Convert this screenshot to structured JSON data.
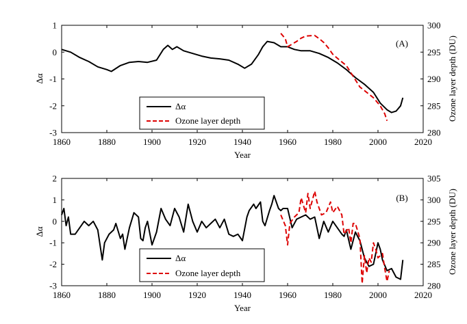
{
  "chart_data": [
    {
      "type": "line",
      "panel_label": "(A)",
      "xlabel": "Year",
      "ylabel_left": "Δα",
      "ylabel_right": "Ozone layer depth (DU)",
      "xlim": [
        1860,
        2020
      ],
      "ylim_left": [
        -3,
        1
      ],
      "ylim_right": [
        280,
        300
      ],
      "x_ticks": [
        1860,
        1880,
        1900,
        1920,
        1940,
        1960,
        1980,
        2000,
        2020
      ],
      "y_ticks_left": [
        -3,
        -2,
        -1,
        0,
        1
      ],
      "y_ticks_right": [
        280,
        285,
        290,
        295,
        300
      ],
      "legend": [
        "Δα",
        "Ozone layer depth"
      ],
      "legend_position": "bottom-center",
      "series": [
        {
          "name": "Δα",
          "axis": "left",
          "color": "#000000",
          "style": "solid",
          "points": [
            [
              1860,
              0.1
            ],
            [
              1864,
              0.0
            ],
            [
              1868,
              -0.2
            ],
            [
              1872,
              -0.35
            ],
            [
              1876,
              -0.55
            ],
            [
              1880,
              -0.65
            ],
            [
              1882,
              -0.72
            ],
            [
              1886,
              -0.5
            ],
            [
              1890,
              -0.38
            ],
            [
              1894,
              -0.35
            ],
            [
              1898,
              -0.38
            ],
            [
              1902,
              -0.3
            ],
            [
              1905,
              0.1
            ],
            [
              1907,
              0.25
            ],
            [
              1909,
              0.1
            ],
            [
              1911,
              0.2
            ],
            [
              1914,
              0.05
            ],
            [
              1918,
              -0.05
            ],
            [
              1922,
              -0.15
            ],
            [
              1926,
              -0.22
            ],
            [
              1930,
              -0.25
            ],
            [
              1934,
              -0.3
            ],
            [
              1938,
              -0.45
            ],
            [
              1941,
              -0.6
            ],
            [
              1944,
              -0.45
            ],
            [
              1947,
              -0.1
            ],
            [
              1949,
              0.2
            ],
            [
              1951,
              0.4
            ],
            [
              1954,
              0.35
            ],
            [
              1957,
              0.2
            ],
            [
              1960,
              0.2
            ],
            [
              1963,
              0.1
            ],
            [
              1966,
              0.05
            ],
            [
              1970,
              0.05
            ],
            [
              1974,
              -0.05
            ],
            [
              1978,
              -0.2
            ],
            [
              1982,
              -0.4
            ],
            [
              1986,
              -0.65
            ],
            [
              1990,
              -0.95
            ],
            [
              1994,
              -1.2
            ],
            [
              1998,
              -1.5
            ],
            [
              2001,
              -1.9
            ],
            [
              2004,
              -2.15
            ],
            [
              2006,
              -2.25
            ],
            [
              2008,
              -2.2
            ],
            [
              2010,
              -2.0
            ],
            [
              2011,
              -1.7
            ]
          ]
        },
        {
          "name": "Ozone layer depth",
          "axis": "right",
          "color": "#dd0000",
          "style": "dashed",
          "points": [
            [
              1957,
              298.5
            ],
            [
              1959,
              297.5
            ],
            [
              1960,
              296.0
            ],
            [
              1962,
              296.5
            ],
            [
              1964,
              297.0
            ],
            [
              1966,
              297.6
            ],
            [
              1968,
              298.0
            ],
            [
              1972,
              298.1
            ],
            [
              1974,
              297.5
            ],
            [
              1976,
              296.8
            ],
            [
              1978,
              295.8
            ],
            [
              1980,
              294.6
            ],
            [
              1983,
              293.5
            ],
            [
              1986,
              292.5
            ],
            [
              1989,
              290.5
            ],
            [
              1992,
              288.5
            ],
            [
              1995,
              287.5
            ],
            [
              1998,
              286.5
            ],
            [
              2001,
              285.0
            ],
            [
              2003,
              283.5
            ],
            [
              2004,
              282.2
            ]
          ]
        }
      ]
    },
    {
      "type": "line",
      "panel_label": "(B)",
      "xlabel": "Year",
      "ylabel_left": "Δα",
      "ylabel_right": "Ozone layer depth (DU)",
      "xlim": [
        1860,
        2020
      ],
      "ylim_left": [
        -3,
        2
      ],
      "ylim_right": [
        280,
        305
      ],
      "x_ticks": [
        1860,
        1880,
        1900,
        1920,
        1940,
        1960,
        1980,
        2000,
        2020
      ],
      "y_ticks_left": [
        -3,
        -2,
        -1,
        0,
        1,
        2
      ],
      "y_ticks_right": [
        280,
        285,
        290,
        295,
        300,
        305
      ],
      "legend": [
        "Δα",
        "Ozone layer depth"
      ],
      "legend_position": "bottom-center",
      "series": [
        {
          "name": "Δα",
          "axis": "left",
          "color": "#000000",
          "style": "solid",
          "points": [
            [
              1860,
              0.3
            ],
            [
              1861,
              0.6
            ],
            [
              1862,
              -0.2
            ],
            [
              1863,
              0.2
            ],
            [
              1864,
              -0.6
            ],
            [
              1866,
              -0.6
            ],
            [
              1868,
              -0.3
            ],
            [
              1870,
              0.0
            ],
            [
              1872,
              -0.2
            ],
            [
              1874,
              0.0
            ],
            [
              1876,
              -0.4
            ],
            [
              1878,
              -1.8
            ],
            [
              1879,
              -1.0
            ],
            [
              1881,
              -0.6
            ],
            [
              1883,
              -0.4
            ],
            [
              1884,
              -0.1
            ],
            [
              1886,
              -0.8
            ],
            [
              1887,
              -0.6
            ],
            [
              1888,
              -1.3
            ],
            [
              1890,
              -0.3
            ],
            [
              1892,
              0.4
            ],
            [
              1894,
              0.2
            ],
            [
              1895,
              -0.8
            ],
            [
              1896,
              -0.9
            ],
            [
              1897,
              -0.3
            ],
            [
              1898,
              0.0
            ],
            [
              1900,
              -1.1
            ],
            [
              1902,
              -0.5
            ],
            [
              1904,
              0.6
            ],
            [
              1906,
              0.1
            ],
            [
              1908,
              -0.2
            ],
            [
              1910,
              0.6
            ],
            [
              1912,
              0.2
            ],
            [
              1914,
              -0.5
            ],
            [
              1916,
              0.8
            ],
            [
              1918,
              0.0
            ],
            [
              1920,
              -0.5
            ],
            [
              1922,
              0.0
            ],
            [
              1924,
              -0.3
            ],
            [
              1926,
              -0.1
            ],
            [
              1928,
              0.1
            ],
            [
              1930,
              -0.3
            ],
            [
              1932,
              0.1
            ],
            [
              1934,
              -0.6
            ],
            [
              1936,
              -0.7
            ],
            [
              1938,
              -0.6
            ],
            [
              1940,
              -0.9
            ],
            [
              1942,
              0.2
            ],
            [
              1943,
              0.5
            ],
            [
              1945,
              0.8
            ],
            [
              1946,
              0.6
            ],
            [
              1948,
              0.9
            ],
            [
              1949,
              0.0
            ],
            [
              1950,
              -0.2
            ],
            [
              1952,
              0.5
            ],
            [
              1953,
              0.8
            ],
            [
              1954,
              1.2
            ],
            [
              1956,
              0.6
            ],
            [
              1957,
              0.5
            ],
            [
              1958,
              0.6
            ],
            [
              1960,
              0.6
            ],
            [
              1962,
              -0.3
            ],
            [
              1964,
              0.1
            ],
            [
              1966,
              0.2
            ],
            [
              1968,
              0.3
            ],
            [
              1970,
              0.1
            ],
            [
              1972,
              0.2
            ],
            [
              1974,
              -0.8
            ],
            [
              1976,
              0.0
            ],
            [
              1978,
              -0.5
            ],
            [
              1980,
              0.0
            ],
            [
              1982,
              -0.3
            ],
            [
              1984,
              -0.6
            ],
            [
              1985,
              -0.7
            ],
            [
              1986,
              -0.4
            ],
            [
              1988,
              -1.3
            ],
            [
              1990,
              -0.5
            ],
            [
              1992,
              -0.9
            ],
            [
              1994,
              -1.7
            ],
            [
              1996,
              -2.1
            ],
            [
              1998,
              -2.0
            ],
            [
              2000,
              -1.0
            ],
            [
              2001,
              -1.3
            ],
            [
              2002,
              -1.8
            ],
            [
              2004,
              -2.3
            ],
            [
              2006,
              -2.2
            ],
            [
              2008,
              -2.6
            ],
            [
              2010,
              -2.7
            ],
            [
              2011,
              -1.8
            ]
          ]
        },
        {
          "name": "Ozone layer depth",
          "axis": "right",
          "color": "#dd0000",
          "style": "dashed",
          "points": [
            [
              1957,
              296.5
            ],
            [
              1959,
              294.0
            ],
            [
              1960,
              289.5
            ],
            [
              1961,
              294.5
            ],
            [
              1963,
              296.0
            ],
            [
              1965,
              297.0
            ],
            [
              1966,
              300.5
            ],
            [
              1968,
              297.0
            ],
            [
              1969,
              301.5
            ],
            [
              1970,
              298.0
            ],
            [
              1972,
              302.0
            ],
            [
              1973,
              299.5
            ],
            [
              1975,
              296.5
            ],
            [
              1977,
              297.0
            ],
            [
              1979,
              299.5
            ],
            [
              1980,
              297.0
            ],
            [
              1982,
              298.5
            ],
            [
              1984,
              296.5
            ],
            [
              1985,
              292.0
            ],
            [
              1987,
              293.5
            ],
            [
              1988,
              290.0
            ],
            [
              1989,
              294.5
            ],
            [
              1990,
              294.5
            ],
            [
              1992,
              291.0
            ],
            [
              1993,
              280.5
            ],
            [
              1994,
              287.0
            ],
            [
              1995,
              283.0
            ],
            [
              1996,
              286.5
            ],
            [
              1997,
              285.5
            ],
            [
              1998,
              290.0
            ],
            [
              1999,
              288.5
            ],
            [
              2000,
              286.5
            ],
            [
              2002,
              287.5
            ],
            [
              2003,
              284.0
            ],
            [
              2004,
              281.0
            ],
            [
              2005,
              283.5
            ]
          ]
        }
      ]
    }
  ]
}
